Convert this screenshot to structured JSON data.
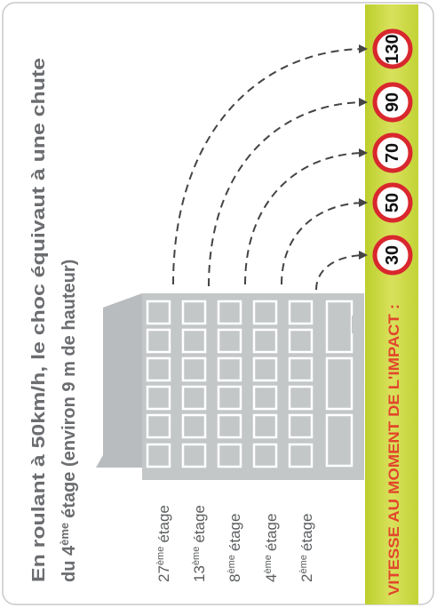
{
  "title": {
    "line1": "En roulant à 50km/h, le choc équivaut à une chute",
    "line2": {
      "before": "du 4",
      "sup": "ème",
      "after": "étage (environ 9 m de hauteur)"
    }
  },
  "impact_label": "VITESSE AU MOMENT DE L'IMPACT :",
  "levels": [
    {
      "floor": "27",
      "sup": "ème",
      "word": "étage",
      "speed": 130
    },
    {
      "floor": "13",
      "sup": "ème",
      "word": "étage",
      "speed": 90
    },
    {
      "floor": "8",
      "sup": "ème",
      "word": "étage",
      "speed": 70
    },
    {
      "floor": "4",
      "sup": "ème",
      "word": "étage",
      "speed": 50
    },
    {
      "floor": "2",
      "sup": "ème",
      "word": "étage",
      "speed": 30
    }
  ]
}
